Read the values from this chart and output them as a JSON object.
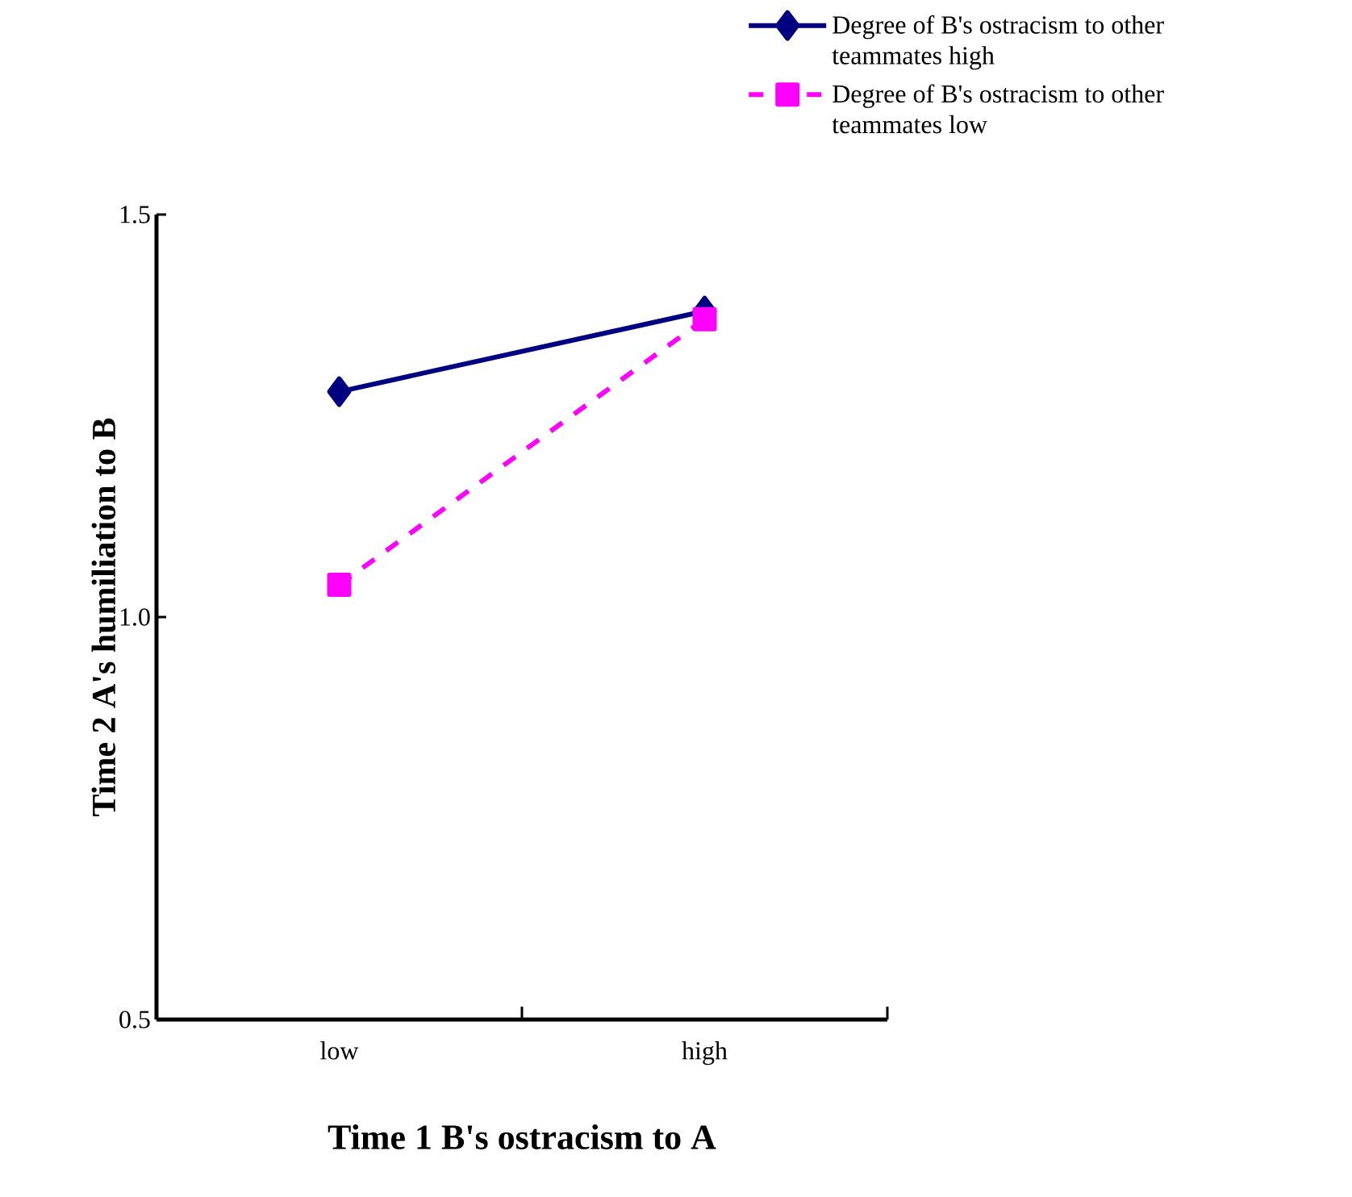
{
  "chart_data": {
    "type": "line",
    "xlabel": "Time 1 B's ostracism to A",
    "ylabel": "Time 2 A's humiliation to B",
    "categories": [
      "low",
      "high"
    ],
    "ylim": [
      0.5,
      1.5
    ],
    "yticks": [
      {
        "value": 0.5,
        "label": "0.5"
      },
      {
        "value": 1.0,
        "label": "1.0"
      },
      {
        "value": 1.5,
        "label": "1.5"
      }
    ],
    "legend": "top right",
    "grid": false,
    "series": [
      {
        "name": "Degree of B's ostracism to other teammates high",
        "color": "#000080",
        "values": [
          1.28,
          1.38
        ],
        "marker": "diamond",
        "line_style": "solid"
      },
      {
        "name": "Degree of B's ostracism to other teammates low",
        "color": "#ff00ff",
        "values": [
          1.04,
          1.37
        ],
        "marker": "square",
        "line_style": "dashed"
      }
    ]
  }
}
